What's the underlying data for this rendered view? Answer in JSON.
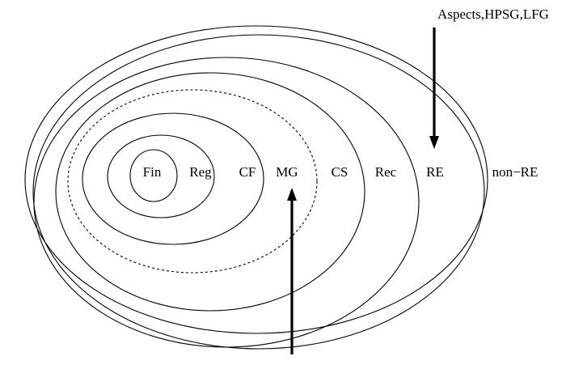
{
  "diagram": {
    "labels": {
      "fin": "Fin",
      "reg": "Reg",
      "cf": "CF",
      "mg": "MG",
      "cs": "CS",
      "rec": "Rec",
      "re": "RE",
      "non_re": "non−RE"
    },
    "annotation_top": "Aspects,HPSG,LFG"
  }
}
